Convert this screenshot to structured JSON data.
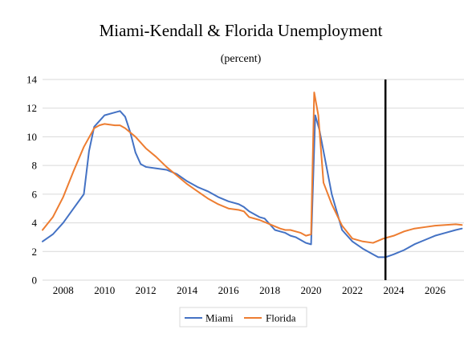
{
  "chart_data": {
    "type": "line",
    "title": "Miami-Kendall & Florida Unemployment",
    "subtitle": "(percent)",
    "xlabel": "",
    "ylabel": "",
    "xlim": [
      2007.0,
      2027.4
    ],
    "ylim": [
      0,
      14
    ],
    "x_ticks": [
      2008,
      2010,
      2012,
      2014,
      2016,
      2018,
      2020,
      2022,
      2024,
      2026
    ],
    "y_ticks": [
      0,
      2,
      4,
      6,
      8,
      10,
      12,
      14
    ],
    "grid": "horizontal",
    "legend": "bottom",
    "vertical_marker_x": 2023.6,
    "series": [
      {
        "name": "Miami",
        "color": "#4472c4",
        "points": [
          [
            2007.0,
            2.7
          ],
          [
            2007.5,
            3.2
          ],
          [
            2008.0,
            4.0
          ],
          [
            2008.5,
            5.0
          ],
          [
            2009.0,
            6.0
          ],
          [
            2009.25,
            9.0
          ],
          [
            2009.5,
            10.7
          ],
          [
            2010.0,
            11.5
          ],
          [
            2010.5,
            11.7
          ],
          [
            2010.75,
            11.8
          ],
          [
            2011.0,
            11.4
          ],
          [
            2011.25,
            10.3
          ],
          [
            2011.5,
            8.9
          ],
          [
            2011.75,
            8.1
          ],
          [
            2012.0,
            7.9
          ],
          [
            2012.5,
            7.8
          ],
          [
            2013.0,
            7.7
          ],
          [
            2013.5,
            7.4
          ],
          [
            2014.0,
            6.9
          ],
          [
            2014.5,
            6.5
          ],
          [
            2015.0,
            6.2
          ],
          [
            2015.5,
            5.8
          ],
          [
            2016.0,
            5.5
          ],
          [
            2016.5,
            5.3
          ],
          [
            2016.75,
            5.1
          ],
          [
            2017.0,
            4.8
          ],
          [
            2017.5,
            4.4
          ],
          [
            2017.75,
            4.3
          ],
          [
            2018.0,
            3.9
          ],
          [
            2018.25,
            3.5
          ],
          [
            2018.5,
            3.4
          ],
          [
            2018.75,
            3.3
          ],
          [
            2019.0,
            3.1
          ],
          [
            2019.25,
            3.0
          ],
          [
            2019.5,
            2.8
          ],
          [
            2019.75,
            2.6
          ],
          [
            2020.0,
            2.5
          ],
          [
            2020.2,
            11.5
          ],
          [
            2020.4,
            10.5
          ],
          [
            2020.6,
            9.0
          ],
          [
            2021.0,
            6.0
          ],
          [
            2021.5,
            3.5
          ],
          [
            2022.0,
            2.7
          ],
          [
            2022.5,
            2.2
          ],
          [
            2023.0,
            1.8
          ],
          [
            2023.25,
            1.6
          ],
          [
            2023.6,
            1.6
          ],
          [
            2024.0,
            1.8
          ],
          [
            2024.5,
            2.1
          ],
          [
            2025.0,
            2.5
          ],
          [
            2025.5,
            2.8
          ],
          [
            2026.0,
            3.1
          ],
          [
            2026.5,
            3.3
          ],
          [
            2027.0,
            3.5
          ],
          [
            2027.3,
            3.6
          ]
        ]
      },
      {
        "name": "Florida",
        "color": "#ed7d31",
        "points": [
          [
            2007.0,
            3.5
          ],
          [
            2007.5,
            4.4
          ],
          [
            2008.0,
            5.8
          ],
          [
            2008.5,
            7.6
          ],
          [
            2009.0,
            9.3
          ],
          [
            2009.5,
            10.6
          ],
          [
            2009.75,
            10.8
          ],
          [
            2010.0,
            10.9
          ],
          [
            2010.5,
            10.8
          ],
          [
            2010.75,
            10.8
          ],
          [
            2011.0,
            10.6
          ],
          [
            2011.5,
            10.0
          ],
          [
            2012.0,
            9.2
          ],
          [
            2012.5,
            8.6
          ],
          [
            2013.0,
            7.9
          ],
          [
            2013.5,
            7.3
          ],
          [
            2014.0,
            6.7
          ],
          [
            2014.5,
            6.2
          ],
          [
            2015.0,
            5.7
          ],
          [
            2015.5,
            5.3
          ],
          [
            2016.0,
            5.0
          ],
          [
            2016.5,
            4.9
          ],
          [
            2016.75,
            4.8
          ],
          [
            2017.0,
            4.4
          ],
          [
            2017.5,
            4.2
          ],
          [
            2018.0,
            3.9
          ],
          [
            2018.5,
            3.6
          ],
          [
            2018.75,
            3.5
          ],
          [
            2019.0,
            3.5
          ],
          [
            2019.25,
            3.4
          ],
          [
            2019.5,
            3.3
          ],
          [
            2019.75,
            3.1
          ],
          [
            2020.0,
            3.2
          ],
          [
            2020.15,
            13.1
          ],
          [
            2020.35,
            11.5
          ],
          [
            2020.6,
            6.8
          ],
          [
            2021.0,
            5.3
          ],
          [
            2021.5,
            3.8
          ],
          [
            2022.0,
            2.9
          ],
          [
            2022.5,
            2.7
          ],
          [
            2023.0,
            2.6
          ],
          [
            2023.5,
            2.9
          ],
          [
            2024.0,
            3.1
          ],
          [
            2024.5,
            3.4
          ],
          [
            2025.0,
            3.6
          ],
          [
            2025.5,
            3.7
          ],
          [
            2026.0,
            3.8
          ],
          [
            2026.5,
            3.85
          ],
          [
            2027.0,
            3.9
          ],
          [
            2027.3,
            3.85
          ]
        ]
      }
    ]
  }
}
